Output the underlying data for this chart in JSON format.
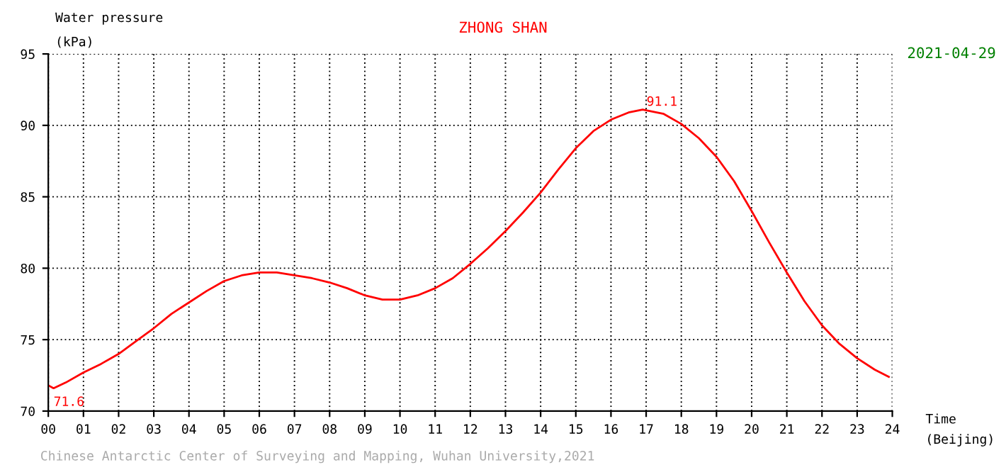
{
  "chart_data": {
    "type": "line",
    "title": "ZHONG SHAN",
    "subtitle": "2021-04-29",
    "xlabel": "Time\n(Beijing)",
    "ylabel": "Water pressure\n(kPa)",
    "x": [
      0,
      0.15,
      0.5,
      1,
      1.5,
      2,
      2.5,
      3,
      3.5,
      4,
      4.5,
      5,
      5.5,
      6,
      6.5,
      7,
      7.5,
      8,
      8.5,
      9,
      9.5,
      10,
      10.5,
      11,
      11.5,
      12,
      12.5,
      13,
      13.5,
      14,
      14.5,
      15,
      15.5,
      16,
      16.5,
      16.9,
      17.5,
      18,
      18.5,
      19,
      19.5,
      20,
      20.5,
      21,
      21.5,
      22,
      22.5,
      23,
      23.5,
      23.9
    ],
    "series": [
      {
        "color": "#ff0000",
        "values": [
          71.8,
          71.6,
          72.0,
          72.7,
          73.3,
          74.0,
          74.9,
          75.8,
          76.8,
          77.6,
          78.4,
          79.1,
          79.5,
          79.7,
          79.7,
          79.5,
          79.3,
          79.0,
          78.6,
          78.1,
          77.8,
          77.8,
          78.1,
          78.6,
          79.3,
          80.3,
          81.4,
          82.6,
          83.9,
          85.3,
          86.9,
          88.4,
          89.6,
          90.4,
          90.9,
          91.1,
          90.8,
          90.1,
          89.1,
          87.8,
          86.1,
          84.0,
          81.8,
          79.7,
          77.7,
          76.0,
          74.7,
          73.7,
          72.9,
          72.4
        ]
      }
    ],
    "xlim": [
      0,
      24
    ],
    "ylim": [
      70,
      95
    ],
    "xticks": [
      {
        "value": 0,
        "label": "00"
      },
      {
        "value": 1,
        "label": "01"
      },
      {
        "value": 2,
        "label": "02"
      },
      {
        "value": 3,
        "label": "03"
      },
      {
        "value": 4,
        "label": "04"
      },
      {
        "value": 5,
        "label": "05"
      },
      {
        "value": 6,
        "label": "06"
      },
      {
        "value": 7,
        "label": "07"
      },
      {
        "value": 8,
        "label": "08"
      },
      {
        "value": 9,
        "label": "09"
      },
      10,
      11,
      12,
      13,
      14,
      15,
      16,
      17,
      18,
      19,
      20,
      21,
      22,
      23,
      24
    ],
    "yticks": [
      70,
      75,
      80,
      85,
      90,
      95
    ],
    "annotations": [
      {
        "text": "91.1",
        "x": 16.9,
        "y": 91.1
      },
      {
        "text": "71.6",
        "x": 0.15,
        "y": 71.6
      },
      "Chinese Antarctic Center of Surveying and Mapping, Wuhan University,2021"
    ],
    "grid": true,
    "marker": "none",
    "line_style": "solid"
  }
}
